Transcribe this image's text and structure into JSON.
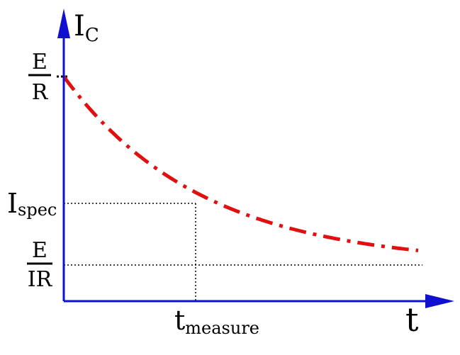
{
  "labels": {
    "y_axis_main": "I",
    "y_axis_sub": "C",
    "x_axis": "t",
    "e_over_r_num": "E",
    "e_over_r_den": "R",
    "i_spec_main": "I",
    "i_spec_sub": "spec",
    "e_over_ir_num": "E",
    "e_over_ir_den": "IR",
    "t_measure_main": "t",
    "t_measure_sub": "measure"
  },
  "colors": {
    "axes": "#1010d0",
    "curve": "#e01010",
    "guides": "#000000"
  }
}
